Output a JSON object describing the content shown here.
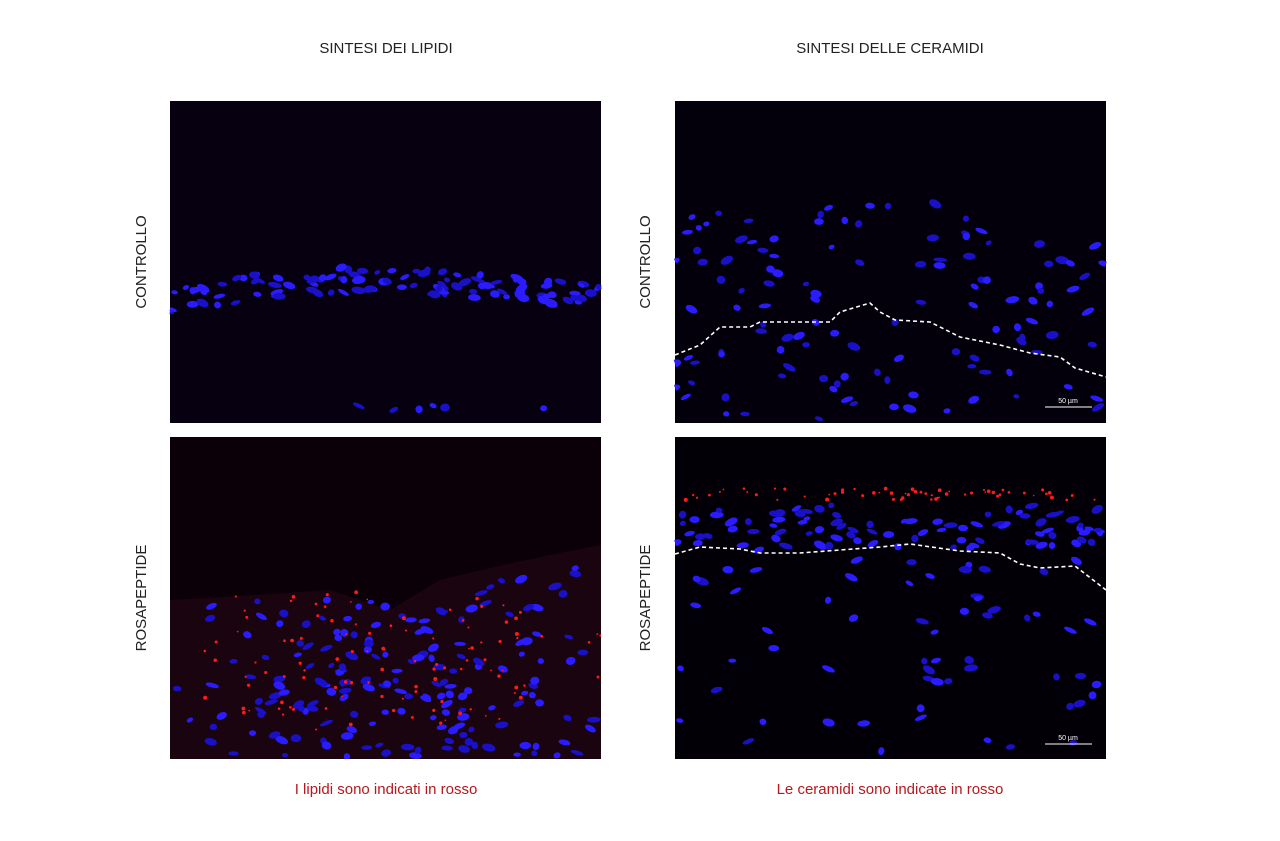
{
  "columns": [
    {
      "title": "SINTESI DEI LIPIDI",
      "caption": "I lipidi sono indicati in rosso",
      "panels": [
        {
          "row_label": "CONTROLLO"
        },
        {
          "row_label": "ROSAPEPTIDE"
        }
      ]
    },
    {
      "title": "SINTESI DELLE CERAMIDI",
      "caption": "Le ceramidi sono indicate in rosso",
      "panels": [
        {
          "row_label": "CONTROLLO",
          "scale_bar": "50 µm"
        },
        {
          "row_label": "ROSAPEPTIDE",
          "scale_bar": "50 µm"
        }
      ]
    }
  ]
}
